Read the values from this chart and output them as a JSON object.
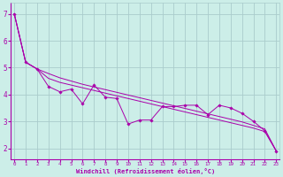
{
  "xlabel": "Windchill (Refroidissement éolien,°C)",
  "bg_color": "#cceee8",
  "grid_color": "#aacccc",
  "line_color": "#aa00aa",
  "x_ticks": [
    0,
    1,
    2,
    3,
    4,
    5,
    6,
    7,
    8,
    9,
    10,
    11,
    12,
    13,
    14,
    15,
    16,
    17,
    18,
    19,
    20,
    21,
    22,
    23
  ],
  "y_ticks": [
    2,
    3,
    4,
    5,
    6,
    7
  ],
  "xlim": [
    -0.3,
    23.3
  ],
  "ylim": [
    1.6,
    7.4
  ],
  "line1_y": [
    7.0,
    5.2,
    4.95,
    4.3,
    4.1,
    4.2,
    3.65,
    4.35,
    3.9,
    3.85,
    2.9,
    3.05,
    3.05,
    3.55,
    3.55,
    3.6,
    3.6,
    3.25,
    3.6,
    3.5,
    3.3,
    3.0,
    2.65,
    1.9
  ],
  "line2_y": [
    7.0,
    5.2,
    4.95,
    4.78,
    4.62,
    4.5,
    4.38,
    4.28,
    4.18,
    4.08,
    3.98,
    3.88,
    3.78,
    3.68,
    3.58,
    3.48,
    3.38,
    3.28,
    3.18,
    3.08,
    2.98,
    2.85,
    2.72,
    1.9
  ],
  "line3_y": [
    7.0,
    5.2,
    4.95,
    4.6,
    4.45,
    4.35,
    4.25,
    4.15,
    4.05,
    3.95,
    3.85,
    3.75,
    3.65,
    3.55,
    3.45,
    3.35,
    3.25,
    3.15,
    3.05,
    2.95,
    2.85,
    2.75,
    2.62,
    1.9
  ]
}
